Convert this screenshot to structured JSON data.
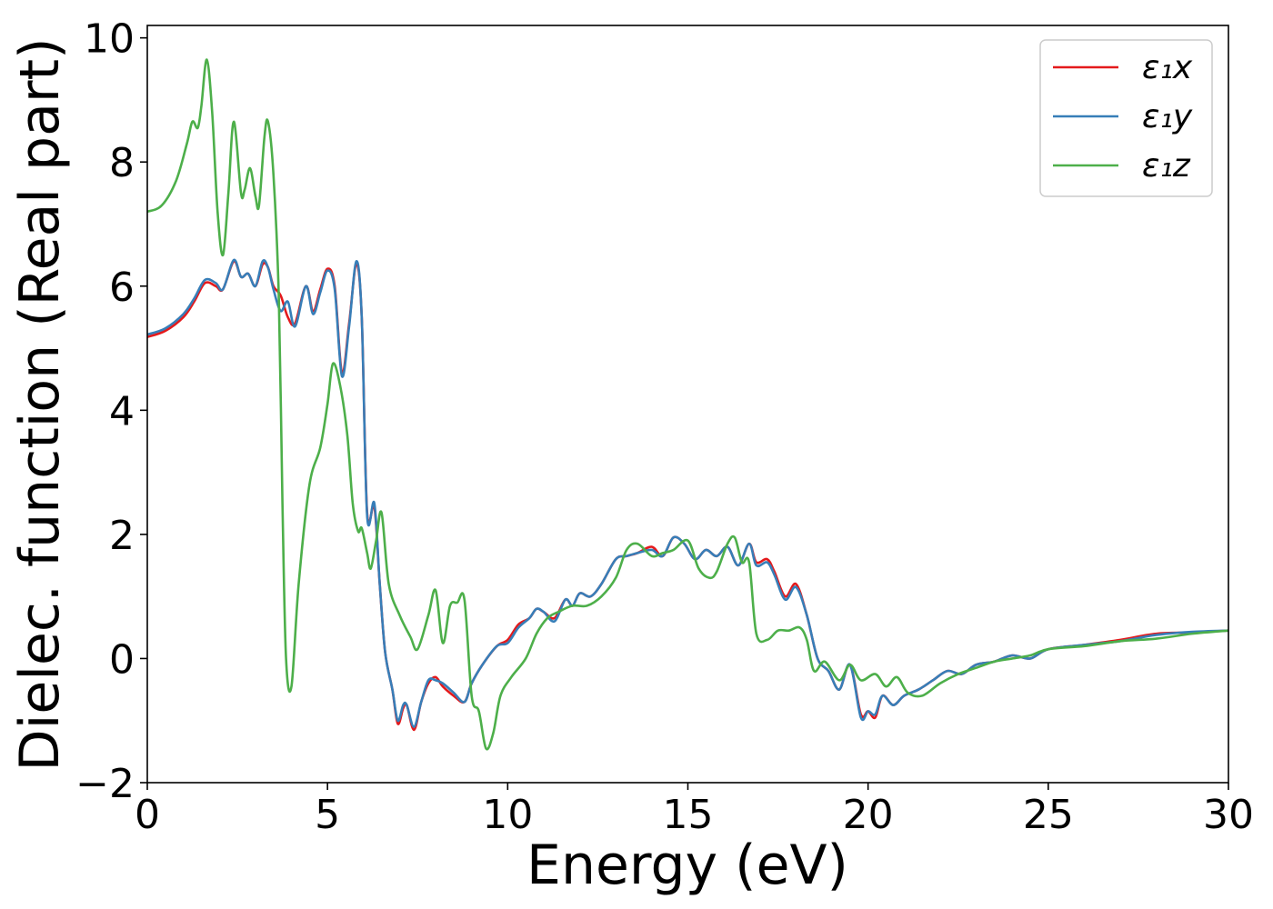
{
  "chart_data": {
    "type": "line",
    "title": "",
    "xlabel": "Energy (eV)",
    "ylabel": "Dielec. function (Real part)",
    "xlim": [
      0,
      30
    ],
    "ylim": [
      -2,
      10.2
    ],
    "x_ticks": [
      0,
      5,
      10,
      15,
      20,
      25,
      30
    ],
    "x_tick_labels": [
      "0",
      "5",
      "10",
      "15",
      "20",
      "25",
      "30"
    ],
    "y_ticks": [
      -2,
      0,
      2,
      4,
      6,
      8,
      10
    ],
    "y_tick_labels": [
      "−2",
      "0",
      "2",
      "4",
      "6",
      "8",
      "10"
    ],
    "grid": false,
    "legend_position": "top-right",
    "series": [
      {
        "name": "ε₁x",
        "color": "#e41a1c",
        "x": [
          0,
          0.5,
          1.0,
          1.3,
          1.6,
          1.9,
          2.1,
          2.4,
          2.6,
          2.8,
          3.0,
          3.2,
          3.35,
          3.5,
          3.7,
          3.9,
          4.1,
          4.4,
          4.6,
          4.8,
          5.0,
          5.2,
          5.4,
          5.6,
          5.8,
          5.95,
          6.1,
          6.3,
          6.45,
          6.6,
          6.8,
          6.95,
          7.1,
          7.2,
          7.4,
          7.6,
          7.8,
          8.0,
          8.2,
          8.5,
          8.8,
          9.0,
          9.3,
          9.7,
          10.0,
          10.3,
          10.6,
          10.8,
          11.0,
          11.3,
          11.6,
          11.8,
          12.0,
          12.3,
          12.6,
          13.0,
          13.3,
          13.6,
          14.0,
          14.3,
          14.6,
          14.9,
          15.2,
          15.5,
          15.8,
          16.1,
          16.4,
          16.7,
          16.9,
          17.2,
          17.4,
          17.7,
          18.0,
          18.3,
          18.6,
          18.9,
          19.2,
          19.5,
          19.8,
          20.0,
          20.2,
          20.4,
          20.7,
          21.0,
          21.4,
          21.8,
          22.2,
          22.6,
          23.0,
          23.5,
          24.0,
          24.5,
          25.0,
          26.0,
          27.0,
          28.0,
          29.0,
          30.0
        ],
        "y": [
          5.18,
          5.28,
          5.5,
          5.75,
          6.05,
          6.0,
          5.95,
          6.4,
          6.15,
          6.2,
          6.0,
          6.35,
          6.3,
          6.0,
          5.85,
          5.5,
          5.4,
          6.0,
          5.6,
          5.95,
          6.28,
          6.0,
          4.6,
          5.4,
          6.35,
          5.5,
          2.35,
          2.45,
          1.2,
          0.1,
          -0.5,
          -1.05,
          -0.8,
          -0.75,
          -1.15,
          -0.7,
          -0.4,
          -0.3,
          -0.45,
          -0.6,
          -0.7,
          -0.4,
          -0.1,
          0.2,
          0.3,
          0.55,
          0.65,
          0.8,
          0.75,
          0.65,
          0.95,
          0.85,
          1.05,
          1.0,
          1.2,
          1.6,
          1.65,
          1.7,
          1.8,
          1.65,
          1.95,
          1.85,
          1.6,
          1.75,
          1.65,
          1.8,
          1.5,
          1.85,
          1.55,
          1.6,
          1.4,
          1.0,
          1.2,
          0.7,
          0.0,
          -0.2,
          -0.5,
          -0.1,
          -0.9,
          -0.85,
          -0.95,
          -0.6,
          -0.75,
          -0.6,
          -0.5,
          -0.35,
          -0.2,
          -0.25,
          -0.1,
          -0.05,
          0.05,
          0.0,
          0.15,
          0.22,
          0.3,
          0.4,
          0.42,
          0.45
        ]
      },
      {
        "name": "ε₁y",
        "color": "#377eb8",
        "x": [
          0,
          0.5,
          1.0,
          1.3,
          1.6,
          1.9,
          2.1,
          2.4,
          2.6,
          2.8,
          3.0,
          3.2,
          3.35,
          3.5,
          3.7,
          3.9,
          4.1,
          4.4,
          4.6,
          4.8,
          5.0,
          5.2,
          5.4,
          5.6,
          5.8,
          5.95,
          6.1,
          6.3,
          6.45,
          6.6,
          6.8,
          6.95,
          7.1,
          7.2,
          7.4,
          7.6,
          7.8,
          8.0,
          8.2,
          8.5,
          8.8,
          9.0,
          9.3,
          9.7,
          10.0,
          10.3,
          10.6,
          10.8,
          11.0,
          11.3,
          11.6,
          11.8,
          12.0,
          12.3,
          12.6,
          13.0,
          13.3,
          13.6,
          14.0,
          14.3,
          14.6,
          14.9,
          15.2,
          15.5,
          15.8,
          16.1,
          16.4,
          16.7,
          16.9,
          17.2,
          17.4,
          17.7,
          18.0,
          18.3,
          18.6,
          18.9,
          19.2,
          19.5,
          19.8,
          20.0,
          20.2,
          20.4,
          20.7,
          21.0,
          21.4,
          21.8,
          22.2,
          22.6,
          23.0,
          23.5,
          24.0,
          24.5,
          25.0,
          26.0,
          27.0,
          28.0,
          29.0,
          30.0
        ],
        "y": [
          5.22,
          5.32,
          5.55,
          5.8,
          6.1,
          6.05,
          5.95,
          6.42,
          6.15,
          6.2,
          6.0,
          6.4,
          6.3,
          5.95,
          5.6,
          5.75,
          5.35,
          6.0,
          5.55,
          5.9,
          6.25,
          5.95,
          4.55,
          5.35,
          6.4,
          5.5,
          2.3,
          2.5,
          1.2,
          0.1,
          -0.5,
          -1.0,
          -0.75,
          -0.75,
          -1.1,
          -0.7,
          -0.35,
          -0.35,
          -0.4,
          -0.55,
          -0.7,
          -0.4,
          -0.1,
          0.2,
          0.25,
          0.5,
          0.65,
          0.8,
          0.75,
          0.6,
          0.95,
          0.85,
          1.05,
          1.0,
          1.2,
          1.6,
          1.65,
          1.7,
          1.75,
          1.65,
          1.95,
          1.85,
          1.6,
          1.75,
          1.65,
          1.8,
          1.5,
          1.85,
          1.5,
          1.55,
          1.35,
          0.95,
          1.15,
          0.7,
          0.0,
          -0.2,
          -0.5,
          -0.1,
          -0.95,
          -0.85,
          -0.9,
          -0.6,
          -0.75,
          -0.6,
          -0.5,
          -0.35,
          -0.2,
          -0.25,
          -0.1,
          -0.05,
          0.05,
          0.0,
          0.15,
          0.22,
          0.28,
          0.38,
          0.43,
          0.45
        ]
      },
      {
        "name": "ε₁z",
        "color": "#4daf4a",
        "x": [
          0,
          0.4,
          0.8,
          1.1,
          1.25,
          1.4,
          1.5,
          1.65,
          1.8,
          1.95,
          2.1,
          2.25,
          2.4,
          2.6,
          2.7,
          2.85,
          3.0,
          3.1,
          3.25,
          3.35,
          3.5,
          3.65,
          3.75,
          3.85,
          4.0,
          4.2,
          4.5,
          4.8,
          5.0,
          5.15,
          5.35,
          5.55,
          5.7,
          5.85,
          5.95,
          6.1,
          6.2,
          6.35,
          6.5,
          6.7,
          7.0,
          7.3,
          7.5,
          7.8,
          8.0,
          8.2,
          8.4,
          8.6,
          8.8,
          9.0,
          9.2,
          9.4,
          9.6,
          9.8,
          10.1,
          10.5,
          10.8,
          11.1,
          11.4,
          11.8,
          12.2,
          12.6,
          13.0,
          13.3,
          13.6,
          14.0,
          14.3,
          14.6,
          15.0,
          15.3,
          15.6,
          15.8,
          16.1,
          16.3,
          16.5,
          16.7,
          16.9,
          17.2,
          17.5,
          17.8,
          18.1,
          18.3,
          18.5,
          18.8,
          19.2,
          19.5,
          19.8,
          20.2,
          20.5,
          20.8,
          21.1,
          21.5,
          22.0,
          22.5,
          23.0,
          23.5,
          24.0,
          24.5,
          25.0,
          26.0,
          27.0,
          28.0,
          29.0,
          30.0
        ],
        "y": [
          7.2,
          7.3,
          7.7,
          8.3,
          8.65,
          8.55,
          8.9,
          9.65,
          8.8,
          7.2,
          6.5,
          7.5,
          8.65,
          7.5,
          7.55,
          7.9,
          7.45,
          7.3,
          8.4,
          8.65,
          7.8,
          5.8,
          2.5,
          0.0,
          -0.45,
          1.2,
          2.8,
          3.4,
          4.1,
          4.75,
          4.4,
          3.6,
          2.5,
          2.05,
          2.1,
          1.7,
          1.45,
          1.9,
          2.35,
          1.2,
          0.7,
          0.35,
          0.15,
          0.7,
          1.1,
          0.25,
          0.85,
          0.9,
          0.95,
          -0.6,
          -0.85,
          -1.45,
          -1.2,
          -0.6,
          -0.3,
          0.0,
          0.4,
          0.65,
          0.75,
          0.85,
          0.85,
          1.0,
          1.3,
          1.75,
          1.85,
          1.65,
          1.7,
          1.75,
          1.9,
          1.45,
          1.3,
          1.4,
          1.85,
          1.95,
          1.55,
          1.55,
          0.4,
          0.3,
          0.45,
          0.45,
          0.5,
          0.3,
          -0.2,
          -0.05,
          -0.35,
          -0.1,
          -0.35,
          -0.25,
          -0.45,
          -0.3,
          -0.55,
          -0.6,
          -0.4,
          -0.25,
          -0.15,
          -0.05,
          0.0,
          0.05,
          0.15,
          0.2,
          0.28,
          0.32,
          0.4,
          0.45
        ]
      }
    ]
  }
}
